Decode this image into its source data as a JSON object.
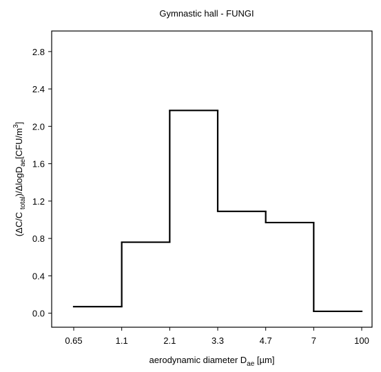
{
  "chart_data": {
    "type": "histogram",
    "title": "Gymnastic hall -  FUNGI",
    "x_label": [
      {
        "text": "aerodynamic diameter D"
      },
      {
        "text": "ae",
        "style": "sub"
      },
      {
        "text": " [µm]"
      }
    ],
    "y_label": [
      {
        "text": "(ΔC/C "
      },
      {
        "text": "total",
        "style": "sub"
      },
      {
        "text": ")/ΔlogD"
      },
      {
        "text": "ae",
        "style": "sub"
      },
      {
        "text": "[CFU/m"
      },
      {
        "text": "3",
        "style": "sup"
      },
      {
        "text": "]"
      }
    ],
    "bins": [
      0.65,
      1.1,
      2.1,
      3.3,
      4.7,
      7,
      100
    ],
    "values": [
      0.07,
      0.76,
      2.17,
      1.09,
      0.97,
      0.02
    ],
    "color": "#000000",
    "ylim": [
      -0.15,
      3.02
    ],
    "yticks": [
      {
        "value": 0,
        "label": "0.0"
      },
      0.4,
      0.8,
      1.2,
      1.6,
      {
        "value": 2,
        "label": "2.0"
      },
      2.4,
      2.8
    ]
  }
}
